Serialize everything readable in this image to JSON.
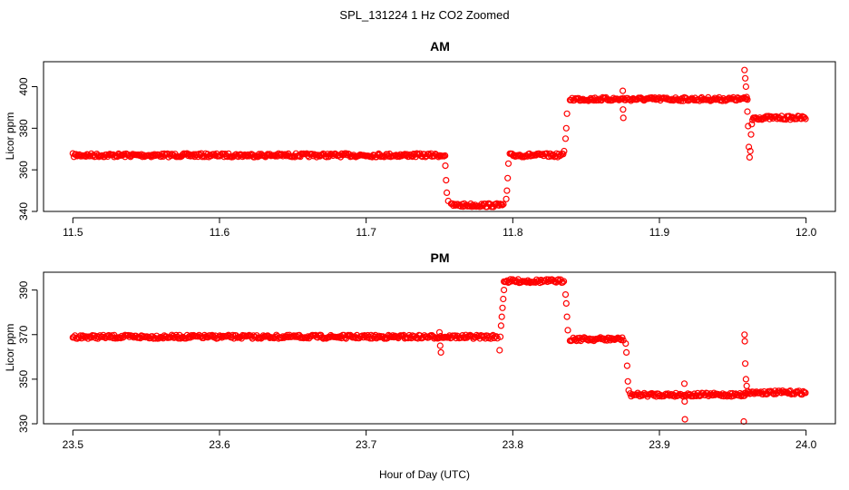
{
  "figure_title": "SPL_131224  1 Hz CO2 Zoomed",
  "xlabel": "Hour of Day (UTC)",
  "series_color": "#ff0000",
  "chart_data": [
    {
      "type": "scatter",
      "title": "AM",
      "ylabel": "Licor ppm",
      "xlim": [
        11.48,
        12.02
      ],
      "ylim": [
        340,
        412
      ],
      "xticks": [
        11.5,
        11.6,
        11.7,
        11.8,
        11.9,
        12.0
      ],
      "xtick_labels": [
        "11.5",
        "11.6",
        "11.7",
        "11.8",
        "11.9",
        "12.0"
      ],
      "yticks": [
        340,
        360,
        380,
        400
      ],
      "ytick_labels": [
        "340",
        "360",
        "380",
        "400"
      ],
      "grid": false,
      "segments": [
        {
          "x": [
            11.5,
            11.754
          ],
          "y": 367
        },
        {
          "x": [
            11.758,
            11.794
          ],
          "y": 343
        },
        {
          "x": [
            11.798,
            11.835
          ],
          "y": 367
        },
        {
          "x": [
            11.839,
            11.96
          ],
          "y": 394
        },
        {
          "x": [
            11.964,
            12.0
          ],
          "y": 385
        }
      ],
      "points": [
        {
          "x": 11.754,
          "y": 362
        },
        {
          "x": 11.7545,
          "y": 355
        },
        {
          "x": 11.755,
          "y": 349
        },
        {
          "x": 11.756,
          "y": 345
        },
        {
          "x": 11.7955,
          "y": 346
        },
        {
          "x": 11.796,
          "y": 350
        },
        {
          "x": 11.7965,
          "y": 356
        },
        {
          "x": 11.797,
          "y": 363
        },
        {
          "x": 11.835,
          "y": 369
        },
        {
          "x": 11.836,
          "y": 375
        },
        {
          "x": 11.8365,
          "y": 380
        },
        {
          "x": 11.837,
          "y": 387
        },
        {
          "x": 11.875,
          "y": 398
        },
        {
          "x": 11.8752,
          "y": 389
        },
        {
          "x": 11.8754,
          "y": 385
        },
        {
          "x": 11.958,
          "y": 408
        },
        {
          "x": 11.9585,
          "y": 404
        },
        {
          "x": 11.959,
          "y": 400
        },
        {
          "x": 11.9595,
          "y": 395
        },
        {
          "x": 11.96,
          "y": 388
        },
        {
          "x": 11.9605,
          "y": 381
        },
        {
          "x": 11.961,
          "y": 371
        },
        {
          "x": 11.9615,
          "y": 366
        },
        {
          "x": 11.962,
          "y": 369
        },
        {
          "x": 11.9625,
          "y": 377
        },
        {
          "x": 11.963,
          "y": 382
        },
        {
          "x": 11.9635,
          "y": 384
        }
      ]
    },
    {
      "type": "scatter",
      "title": "PM",
      "ylabel": "Licor ppm",
      "xlim": [
        23.48,
        24.02
      ],
      "ylim": [
        330,
        398
      ],
      "xticks": [
        23.5,
        23.6,
        23.7,
        23.8,
        23.9,
        24.0
      ],
      "xtick_labels": [
        "23.5",
        "23.6",
        "23.7",
        "23.8",
        "23.9",
        "24.0"
      ],
      "yticks": [
        330,
        350,
        370,
        390
      ],
      "ytick_labels": [
        "330",
        "350",
        "370",
        "390"
      ],
      "grid": false,
      "segments": [
        {
          "x": [
            23.5,
            23.79
          ],
          "y": 369
        },
        {
          "x": [
            23.794,
            23.835
          ],
          "y": 394
        },
        {
          "x": [
            23.839,
            23.876
          ],
          "y": 368
        },
        {
          "x": [
            23.88,
            23.958
          ],
          "y": 343
        },
        {
          "x": [
            23.958,
            24.0
          ],
          "y": 344
        }
      ],
      "points": [
        {
          "x": 23.75,
          "y": 371
        },
        {
          "x": 23.7505,
          "y": 365
        },
        {
          "x": 23.751,
          "y": 362
        },
        {
          "x": 23.791,
          "y": 363
        },
        {
          "x": 23.7915,
          "y": 369
        },
        {
          "x": 23.792,
          "y": 374
        },
        {
          "x": 23.7925,
          "y": 378
        },
        {
          "x": 23.793,
          "y": 382
        },
        {
          "x": 23.7935,
          "y": 386
        },
        {
          "x": 23.794,
          "y": 390
        },
        {
          "x": 23.836,
          "y": 388
        },
        {
          "x": 23.8365,
          "y": 384
        },
        {
          "x": 23.837,
          "y": 378
        },
        {
          "x": 23.8375,
          "y": 372
        },
        {
          "x": 23.877,
          "y": 366
        },
        {
          "x": 23.8775,
          "y": 362
        },
        {
          "x": 23.878,
          "y": 356
        },
        {
          "x": 23.8785,
          "y": 349
        },
        {
          "x": 23.879,
          "y": 345
        },
        {
          "x": 23.917,
          "y": 348
        },
        {
          "x": 23.9172,
          "y": 340
        },
        {
          "x": 23.9174,
          "y": 332
        },
        {
          "x": 23.958,
          "y": 370
        },
        {
          "x": 23.9582,
          "y": 367
        },
        {
          "x": 23.9585,
          "y": 357
        },
        {
          "x": 23.959,
          "y": 350
        },
        {
          "x": 23.9595,
          "y": 347
        },
        {
          "x": 23.9575,
          "y": 331
        }
      ]
    }
  ]
}
